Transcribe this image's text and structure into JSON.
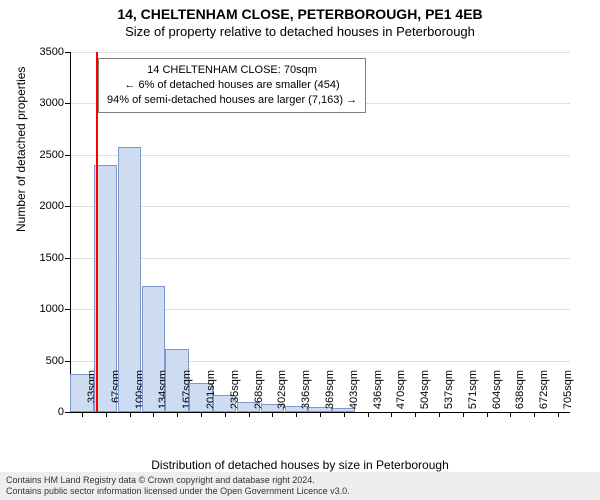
{
  "title_main": "14, CHELTENHAM CLOSE, PETERBOROUGH, PE1 4EB",
  "title_sub": "Size of property relative to detached houses in Peterborough",
  "y_axis_label": "Number of detached properties",
  "x_axis_label": "Distribution of detached houses by size in Peterborough",
  "annotation": {
    "line1": "14 CHELTENHAM CLOSE: 70sqm",
    "line2": "← 6% of detached houses are smaller (454)",
    "line3": "94% of semi-detached houses are larger (7,163) →"
  },
  "footer": {
    "line1": "Contains HM Land Registry data © Crown copyright and database right 2024.",
    "line2": "Contains public sector information licensed under the Open Government Licence v3.0."
  },
  "chart": {
    "type": "histogram",
    "ylim": [
      0,
      3500
    ],
    "ytick_step": 500,
    "x_categories": [
      "33sqm",
      "67sqm",
      "100sqm",
      "134sqm",
      "167sqm",
      "201sqm",
      "235sqm",
      "268sqm",
      "302sqm",
      "336sqm",
      "369sqm",
      "403sqm",
      "436sqm",
      "470sqm",
      "504sqm",
      "537sqm",
      "571sqm",
      "604sqm",
      "638sqm",
      "672sqm",
      "705sqm"
    ],
    "values": [
      370,
      2400,
      2580,
      1230,
      610,
      280,
      170,
      100,
      75,
      55,
      45,
      40,
      0,
      0,
      0,
      0,
      0,
      0,
      0,
      0,
      0
    ],
    "bar_fill": "#cedcf2",
    "bar_stroke": "#7f98c9",
    "reference_line_index": 1,
    "reference_line_color": "#ff0000",
    "background_color": "#ffffff",
    "grid_color": "#808080"
  }
}
